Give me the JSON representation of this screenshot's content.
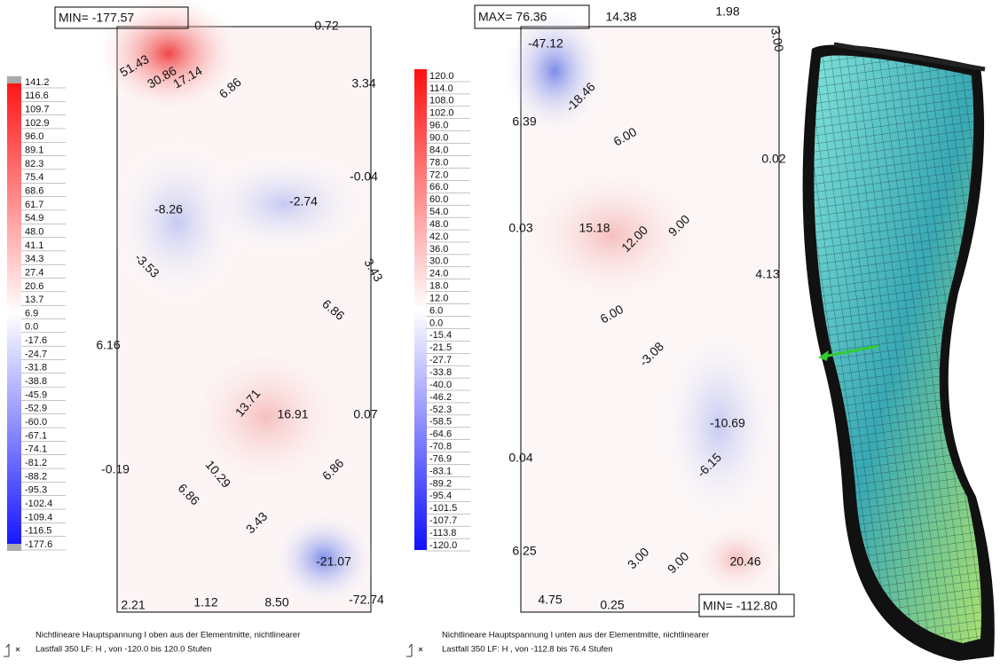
{
  "left_panel": {
    "extreme_label": "MIN= -177.57",
    "legend": [
      "141.2",
      "116.6",
      "109.7",
      "102.9",
      "96.0",
      "89.1",
      "82.3",
      "75.4",
      "68.6",
      "61.7",
      "54.9",
      "48.0",
      "41.1",
      "34.3",
      "27.4",
      "20.6",
      "13.7",
      "6.9",
      "0.0",
      "-17.6",
      "-24.7",
      "-31.8",
      "-38.8",
      "-45.9",
      "-52.9",
      "-60.0",
      "-67.1",
      "-74.1",
      "-81.2",
      "-88.2",
      "-95.3",
      "-102.4",
      "-109.4",
      "-116.5",
      "-177.6"
    ],
    "contour_labels": [
      "0.72",
      "51.43",
      "30.86",
      "17.14",
      "6.86",
      "3.34",
      "-0.04",
      "-8.26",
      "-2.74",
      "-3.53",
      "3.43",
      "6.86",
      "6.16",
      "13.71",
      "16.91",
      "0.07",
      "-0.19",
      "10.29",
      "6.86",
      "6.86",
      "3.43",
      "-21.07",
      "2.21",
      "1.12",
      "8.50",
      "-72.74"
    ],
    "footer": [
      "Nichtlineare Hauptspannung I oben aus der Elementmitte, nichtlinearer",
      "Lastfall 350 LF: H    , von -120.0 bis 120.0 Stufen"
    ]
  },
  "right_panel": {
    "extreme_label_top": "MAX= 76.36",
    "extreme_label_bottom": "MIN= -112.80",
    "legend": [
      "120.0",
      "114.0",
      "108.0",
      "102.0",
      "96.0",
      "90.0",
      "84.0",
      "78.0",
      "72.0",
      "66.0",
      "60.0",
      "54.0",
      "48.0",
      "42.0",
      "36.0",
      "30.0",
      "24.0",
      "18.0",
      "12.0",
      "6.0",
      "0.0",
      "-15.4",
      "-21.5",
      "-27.7",
      "-33.8",
      "-40.0",
      "-46.2",
      "-52.3",
      "-58.5",
      "-64.6",
      "-70.8",
      "-76.9",
      "-83.1",
      "-89.2",
      "-95.4",
      "-101.5",
      "-107.7",
      "-113.8",
      "-120.0"
    ],
    "contour_labels": [
      "14.38",
      "1.98",
      "3.00",
      "-47.12",
      "-18.46",
      "6.39",
      "6.00",
      "0.02",
      "0.03",
      "15.18",
      "12.00",
      "9.00",
      "4.13",
      "6.00",
      "-3.08",
      "-10.69",
      "0.04",
      "-6.15",
      "6.25",
      "3.00",
      "9.00",
      "20.46",
      "4.75",
      "0.25"
    ],
    "footer": [
      "Nichtlineare Hauptspannung I unten aus der Elementmitte, nichtlinearer",
      "Lastfall 350 LF: H    , von -112.8 bis 76.4 Stufen"
    ]
  }
}
